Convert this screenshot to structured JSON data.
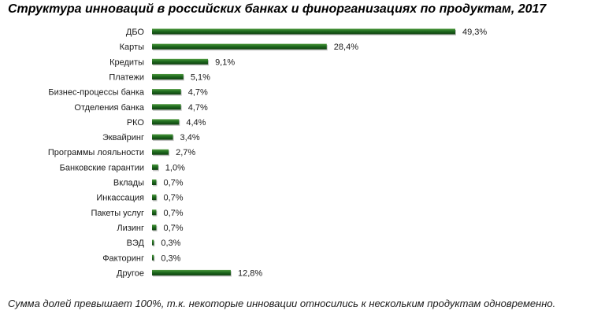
{
  "chart_data": {
    "type": "bar",
    "orientation": "horizontal",
    "title": "Структура инноваций в российских банках и финорганизациях по продуктам, 2017",
    "categories": [
      "ДБО",
      "Карты",
      "Кредиты",
      "Платежи",
      "Бизнес-процессы банка",
      "Отделения банка",
      "РКО",
      "Эквайринг",
      "Программы лояльности",
      "Банковские гарантии",
      "Вклады",
      "Инкассация",
      "Пакеты услуг",
      "Лизинг",
      "ВЭД",
      "Факторинг",
      "Другое"
    ],
    "values": [
      49.3,
      28.4,
      9.1,
      5.1,
      4.7,
      4.7,
      4.4,
      3.4,
      2.7,
      1.0,
      0.7,
      0.7,
      0.7,
      0.7,
      0.3,
      0.3,
      12.8
    ],
    "value_labels": [
      "49,3%",
      "28,4%",
      "9,1%",
      "5,1%",
      "4,7%",
      "4,7%",
      "4,4%",
      "3,4%",
      "2,7%",
      "1,0%",
      "0,7%",
      "0,7%",
      "0,7%",
      "0,7%",
      "0,3%",
      "0,3%",
      "12,8%"
    ],
    "unit": "%",
    "xlim": [
      0,
      49.3
    ],
    "grid": false,
    "legend": "none",
    "bar_color": "#1f6b1f",
    "bar_highlight": "#4f9a3f",
    "note": "Сумма долей превышает 100%, т.к. некоторые инновации относились к нескольким продуктам одновременно."
  }
}
